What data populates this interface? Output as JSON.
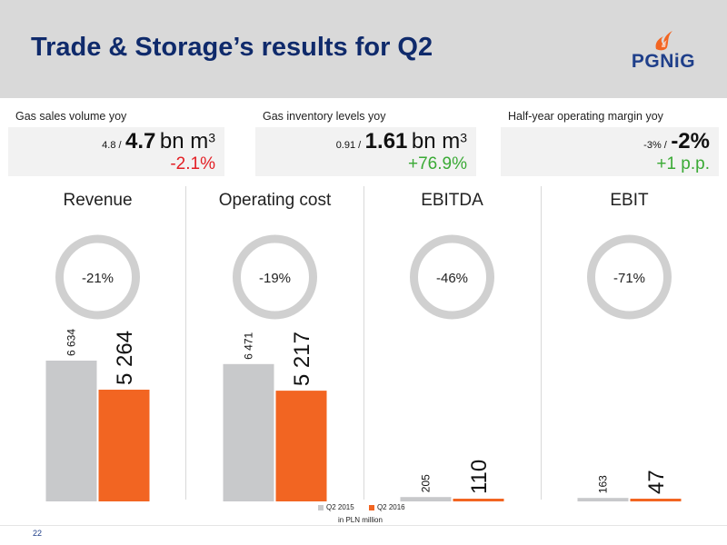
{
  "header": {
    "title": "Trade & Storage’s results for Q2",
    "logo_text": "PGNiG"
  },
  "kpis": [
    {
      "label": "Gas sales volume yoy",
      "previous": "4.8 /",
      "current": "4.7",
      "unit": "bn m",
      "unit_sup": "3",
      "change": "-2.1%",
      "change_color": "#e31e24"
    },
    {
      "label": "Gas inventory levels yoy",
      "previous": "0.91 /",
      "current": "1.61",
      "unit": "bn m",
      "unit_sup": "3",
      "change": "+76.9%",
      "change_color": "#3aaa35"
    },
    {
      "label": "Half-year operating margin yoy",
      "previous": "-3% /",
      "current": "-2%",
      "unit": "",
      "unit_sup": "",
      "change": "+1 p.p.",
      "change_color": "#3aaa35"
    }
  ],
  "colors": {
    "q2_2015": "#c8c9cb",
    "q2_2016": "#f26522",
    "ring": "#d0d0d0"
  },
  "chart_data": [
    {
      "type": "bar",
      "title": "Revenue",
      "change": "-21%",
      "categories": [
        "Q2 2015",
        "Q2 2016"
      ],
      "values": [
        6634,
        5264
      ],
      "value_labels": [
        "6 634",
        "5 264"
      ]
    },
    {
      "type": "bar",
      "title": "Operating cost",
      "change": "-19%",
      "categories": [
        "Q2 2015",
        "Q2 2016"
      ],
      "values": [
        6471,
        5217
      ],
      "value_labels": [
        "6 471",
        "5 217"
      ]
    },
    {
      "type": "bar",
      "title": "EBITDA",
      "change": "-46%",
      "categories": [
        "Q2 2015",
        "Q2 2016"
      ],
      "values": [
        205,
        110
      ],
      "value_labels": [
        "205",
        "110"
      ]
    },
    {
      "type": "bar",
      "title": "EBIT",
      "change": "-71%",
      "categories": [
        "Q2 2015",
        "Q2 2016"
      ],
      "values": [
        163,
        47
      ],
      "value_labels": [
        "163",
        "47"
      ]
    }
  ],
  "legend": {
    "items": [
      "Q2 2015",
      "Q2 2016"
    ],
    "unit_note": "in PLN million"
  },
  "footer": {
    "page_number": "22"
  }
}
